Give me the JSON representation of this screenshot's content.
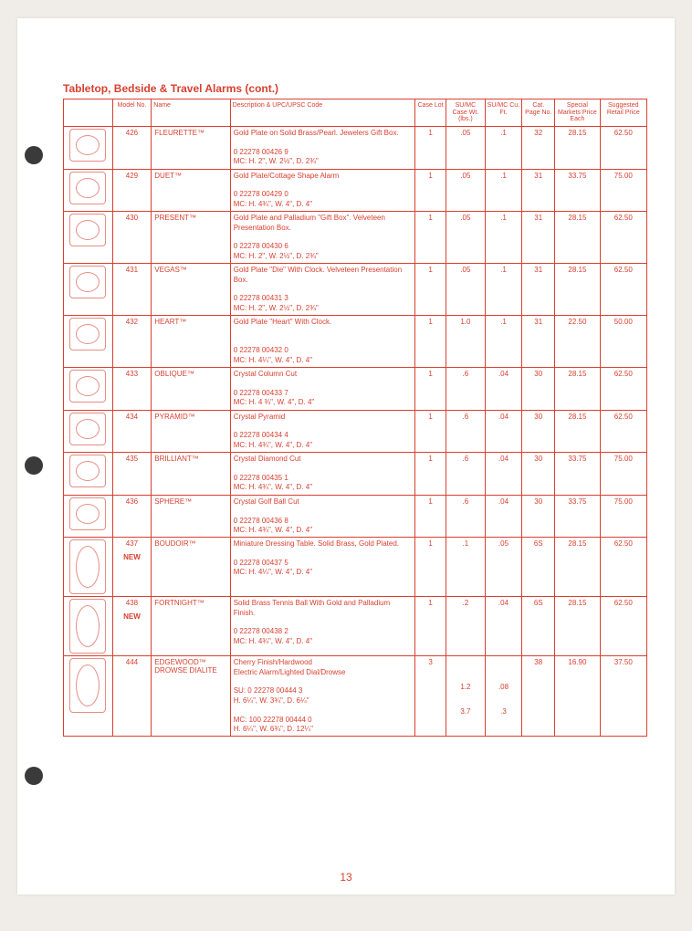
{
  "page": {
    "title": "Tabletop, Bedside & Travel Alarms (cont.)",
    "number": "13",
    "accent_color": "#d84030",
    "background": "#ffffff"
  },
  "columns": {
    "img": "",
    "model": "Model No.",
    "name": "Name",
    "desc": "Description & UPC/UPSC Code",
    "case": "Case Lot",
    "wt": "SU/MC Case Wt. (lbs.)",
    "cuft": "SU/MC Cu. Ft.",
    "cat": "Cat. Page No.",
    "price": "Special Markets Price Each",
    "retail": "Suggested Retail Price"
  },
  "rows": [
    {
      "model": "426",
      "new": "",
      "name": "FLEURETTE™",
      "desc": "Gold Plate on Solid Brass/Pearl. Jewelers Gift Box.\n\n0 22278 00426 9\nMC: H. 2\", W. 2½\", D. 2¾\"",
      "case": "1",
      "wt": ".05",
      "cuft": ".1",
      "cat": "32",
      "price": "28.15",
      "retail": "62.50"
    },
    {
      "model": "429",
      "new": "",
      "name": "DUET™",
      "desc": "Gold Plate/Cottage Shape Alarm\n\n0 22278 00429 0\nMC: H. 4¾\", W. 4\", D. 4\"",
      "case": "1",
      "wt": ".05",
      "cuft": ".1",
      "cat": "31",
      "price": "33.75",
      "retail": "75.00"
    },
    {
      "model": "430",
      "new": "",
      "name": "PRESENT™",
      "desc": "Gold Plate and Palladium \"Gift Box\". Velveteen Presentation Box.\n\n0 22278 00430 6\nMC: H. 2\", W. 2½\", D. 2¾\"",
      "case": "1",
      "wt": ".05",
      "cuft": ".1",
      "cat": "31",
      "price": "28.15",
      "retail": "62.50"
    },
    {
      "model": "431",
      "new": "",
      "name": "VEGAS™",
      "desc": "Gold Plate \"Die\" With Clock. Velveteen Presentation Box.\n\n0 22278 00431 3\nMC: H. 2\", W. 2½\", D. 2¾\"",
      "case": "1",
      "wt": ".05",
      "cuft": ".1",
      "cat": "31",
      "price": "28.15",
      "retail": "62.50"
    },
    {
      "model": "432",
      "new": "",
      "name": "HEART™",
      "desc": "Gold Plate \"Heart\" With Clock.\n\n\n0 22278 00432 0\nMC: H. 4¼\", W. 4\", D. 4\"",
      "case": "1",
      "wt": "1.0",
      "cuft": ".1",
      "cat": "31",
      "price": "22.50",
      "retail": "50.00"
    },
    {
      "model": "433",
      "new": "",
      "name": "OBLIQUE™",
      "desc": "Crystal Column Cut\n\n0 22278 00433 7\nMC: H. 4 ¾\", W. 4\", D. 4\"",
      "case": "1",
      "wt": ".6",
      "cuft": ".04",
      "cat": "30",
      "price": "28.15",
      "retail": "62.50"
    },
    {
      "model": "434",
      "new": "",
      "name": "PYRAMID™",
      "desc": "Crystal Pyramid\n\n0 22278 00434 4\nMC: H. 4¾\", W. 4\", D. 4\"",
      "case": "1",
      "wt": ".6",
      "cuft": ".04",
      "cat": "30",
      "price": "28.15",
      "retail": "62.50"
    },
    {
      "model": "435",
      "new": "",
      "name": "BRILLIANT™",
      "desc": "Crystal Diamond Cut\n\n0 22278 00435 1\nMC: H. 4¾\", W. 4\", D. 4\"",
      "case": "1",
      "wt": ".6",
      "cuft": ".04",
      "cat": "30",
      "price": "33.75",
      "retail": "75.00"
    },
    {
      "model": "436",
      "new": "",
      "name": "SPHERE™",
      "desc": "Crystal Golf Ball Cut\n\n0 22278 00436 8\nMC: H. 4¾\", W. 4\", D. 4\"",
      "case": "1",
      "wt": ".6",
      "cuft": ".04",
      "cat": "30",
      "price": "33.75",
      "retail": "75.00"
    },
    {
      "model": "437",
      "new": "NEW",
      "name": "BOUDOIR™",
      "desc": "Miniature Dressing Table. Solid Brass, Gold Plated.\n\n0 22278 00437 5\nMC: H. 4¼\", W. 4\", D. 4\"",
      "case": "1",
      "wt": ".1",
      "cuft": ".05",
      "cat": "6S",
      "price": "28.15",
      "retail": "62.50",
      "tall": true
    },
    {
      "model": "438",
      "new": "NEW",
      "name": "FORTNIGHT™",
      "desc": "Solid Brass Tennis Ball With Gold and Palladium Finish.\n\n0 22278 00438 2\nMC: H. 4¾\", W. 4\", D. 4\"",
      "case": "1",
      "wt": ".2",
      "cuft": ".04",
      "cat": "6S",
      "price": "28.15",
      "retail": "62.50",
      "tall": true
    },
    {
      "model": "444",
      "new": "",
      "name": "EDGEWOOD™ DROWSE DIALITE",
      "desc": "Cherry Finish/Hardwood\nElectric Alarm/Lighted Dial/Drowse\n\nSU:  0 22278 00444 3\n        H. 6¼\", W. 3¾\", D. 6¼\"\n\nMC:  100 22278 00444 0\n        H. 6¼\", W. 6¾\", D. 12¼\"",
      "case": "3",
      "wt": "\n\n\n1.2\n\n\n3.7",
      "cuft": "\n\n\n.08\n\n\n.3",
      "cat": "38",
      "price": "16.90",
      "retail": "37.50",
      "tall": true
    }
  ]
}
